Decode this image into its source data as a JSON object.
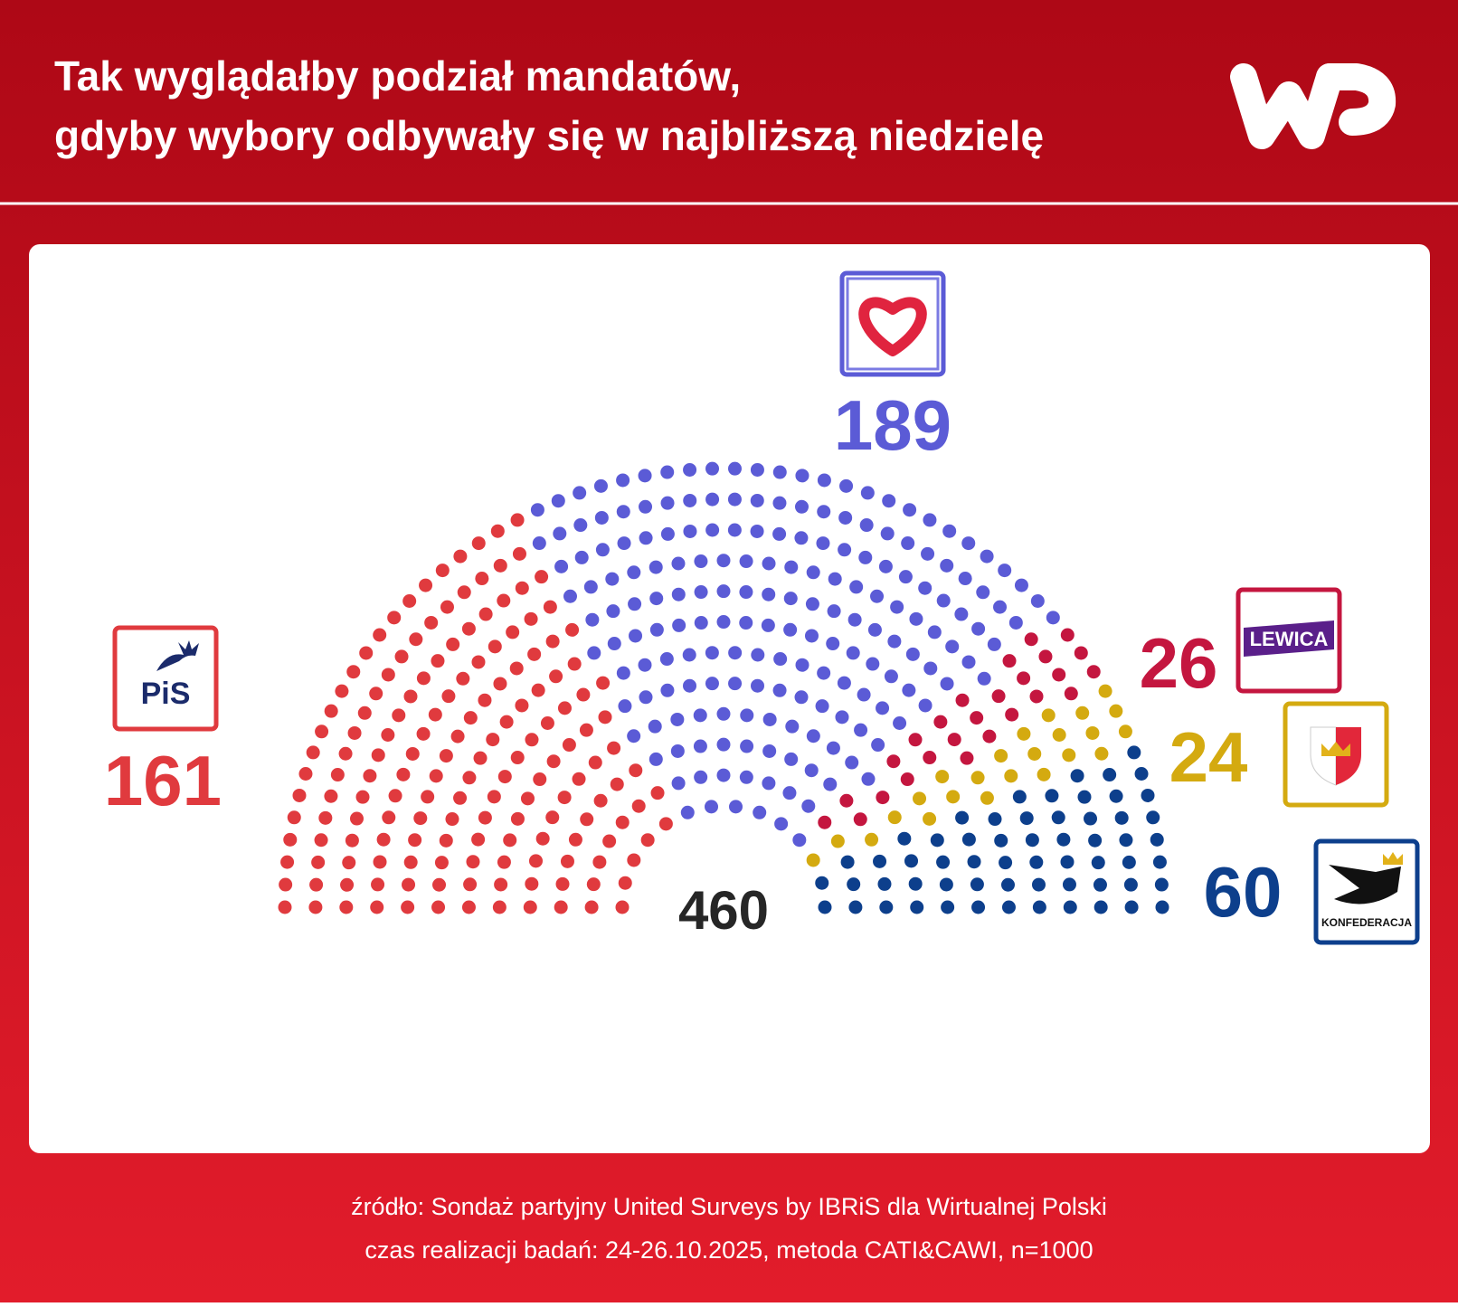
{
  "title_lines": [
    "Tak wyglądałby podział mandatów,",
    "gdyby wybory odbywały się w najbliższą niedzielę"
  ],
  "chart_data": {
    "type": "parliament",
    "total": 460,
    "series": [
      {
        "logo": "PiS",
        "color": "#e03a3e",
        "value": 161
      },
      {
        "color": "#5b5bd6",
        "value": 189
      },
      {
        "logo": "LEWICA",
        "color": "#c4163f",
        "value": 26
      },
      {
        "color": "#d4aa10",
        "value": 24
      },
      {
        "logo": "KONFEDERACJA",
        "color": "#0d3f8c",
        "value": 60
      }
    ]
  },
  "footer_lines": [
    "źródło: Sondaż partyjny United Surveys by IBRiS dla Wirtualnej Polski",
    "czas realizacji badań: 24-26.10.2025, metoda CATI&CAWI, n=1000"
  ]
}
